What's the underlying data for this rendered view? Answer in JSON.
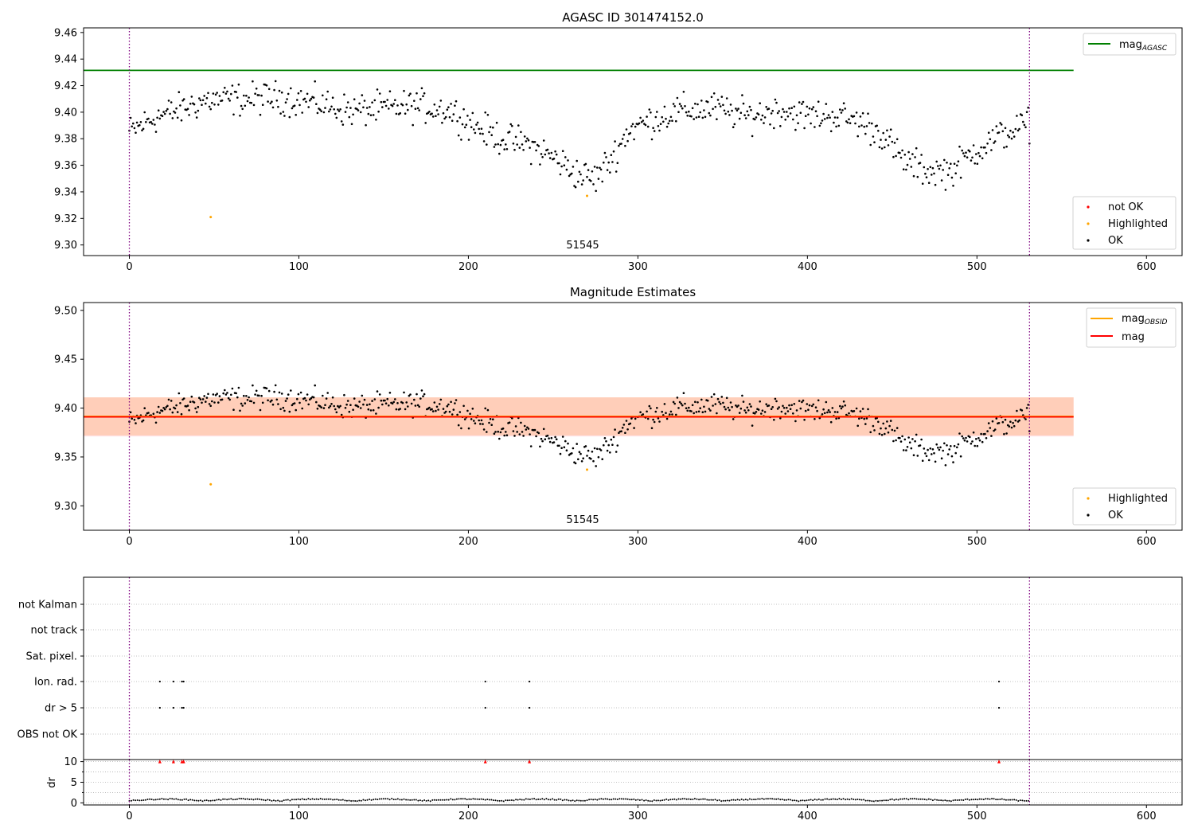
{
  "colors": {
    "ok": "#000000",
    "not_ok": "#ff0000",
    "highlighted": "#ffa500",
    "mag_agasc": "#008000",
    "mag_obsid": "#ffa500",
    "mag": "#ff0000",
    "band_mag": "#ffc0cb",
    "band_obsid": "#ffb380",
    "vline": "#800080",
    "grid": "#b0b0b0"
  },
  "chart_data": [
    {
      "type": "scatter",
      "title": "AGASC ID 301474152.0",
      "xlim": [
        -27,
        621
      ],
      "ylim": [
        9.292,
        9.4635
      ],
      "x_ticks": [
        "0",
        "100",
        "200",
        "300",
        "400",
        "500",
        "600"
      ],
      "y_ticks": [
        "9.30",
        "9.32",
        "9.34",
        "9.36",
        "9.38",
        "9.40",
        "9.42",
        "9.44",
        "9.46"
      ],
      "obsid_label": "51545",
      "obsid_boundaries": [
        0,
        531
      ],
      "mag_agasc": 9.4315,
      "mag_agasc_xrange": [
        -27,
        557
      ],
      "legend_lines": [
        {
          "label": "mag",
          "sub": "AGASC"
        }
      ],
      "legend_points": [
        "not OK",
        "Highlighted",
        "OK"
      ],
      "highlighted": [
        {
          "x": 48,
          "y": 9.321
        },
        {
          "x": 270,
          "y": 9.337
        }
      ]
    },
    {
      "type": "scatter",
      "title": "Magnitude Estimates",
      "xlim": [
        -27,
        621
      ],
      "ylim": [
        9.275,
        9.508
      ],
      "x_ticks": [
        "0",
        "100",
        "200",
        "300",
        "400",
        "500",
        "600"
      ],
      "y_ticks": [
        "9.30",
        "9.35",
        "9.40",
        "9.45",
        "9.50"
      ],
      "obsid_label": "51545",
      "obsid_boundaries": [
        0,
        531
      ],
      "mag_obsid": 9.3915,
      "mag_obsid_band": [
        9.372,
        9.411
      ],
      "mag": 9.391,
      "mag_band": [
        9.371,
        9.411
      ],
      "band_xrange": [
        -27,
        557
      ],
      "legend_lines": [
        {
          "label": "mag",
          "sub": "OBSID"
        },
        {
          "label": "mag",
          "sub": ""
        }
      ],
      "legend_points": [
        "Highlighted",
        "OK"
      ],
      "highlighted": [
        {
          "x": 48,
          "y": 9.322
        },
        {
          "x": 270,
          "y": 9.337
        }
      ]
    },
    {
      "type": "scatter",
      "title": "",
      "xlim": [
        -27,
        621
      ],
      "categories": [
        "not Kalman",
        "not track",
        "Sat. pixel.",
        "Ion. rad.",
        "dr > 5",
        "OBS not OK"
      ],
      "flags": {
        "Ion. rad.": [
          18,
          26,
          31,
          32,
          210,
          236,
          513
        ],
        "dr > 5": [
          18,
          26,
          31,
          32,
          210,
          236,
          513
        ]
      },
      "obsid_boundaries": [
        0,
        531
      ]
    },
    {
      "type": "scatter",
      "title": "",
      "xlim": [
        -27,
        621
      ],
      "ylim": [
        -0.5,
        10.5
      ],
      "ylabel": "dr",
      "x_ticks": [
        "0",
        "100",
        "200",
        "300",
        "400",
        "500",
        "600"
      ],
      "y_ticks": [
        "0",
        "5",
        "10"
      ],
      "clipped_markers_x": [
        18,
        26,
        31,
        32,
        210,
        236,
        513
      ],
      "obsid_boundaries": [
        0,
        531
      ]
    }
  ]
}
